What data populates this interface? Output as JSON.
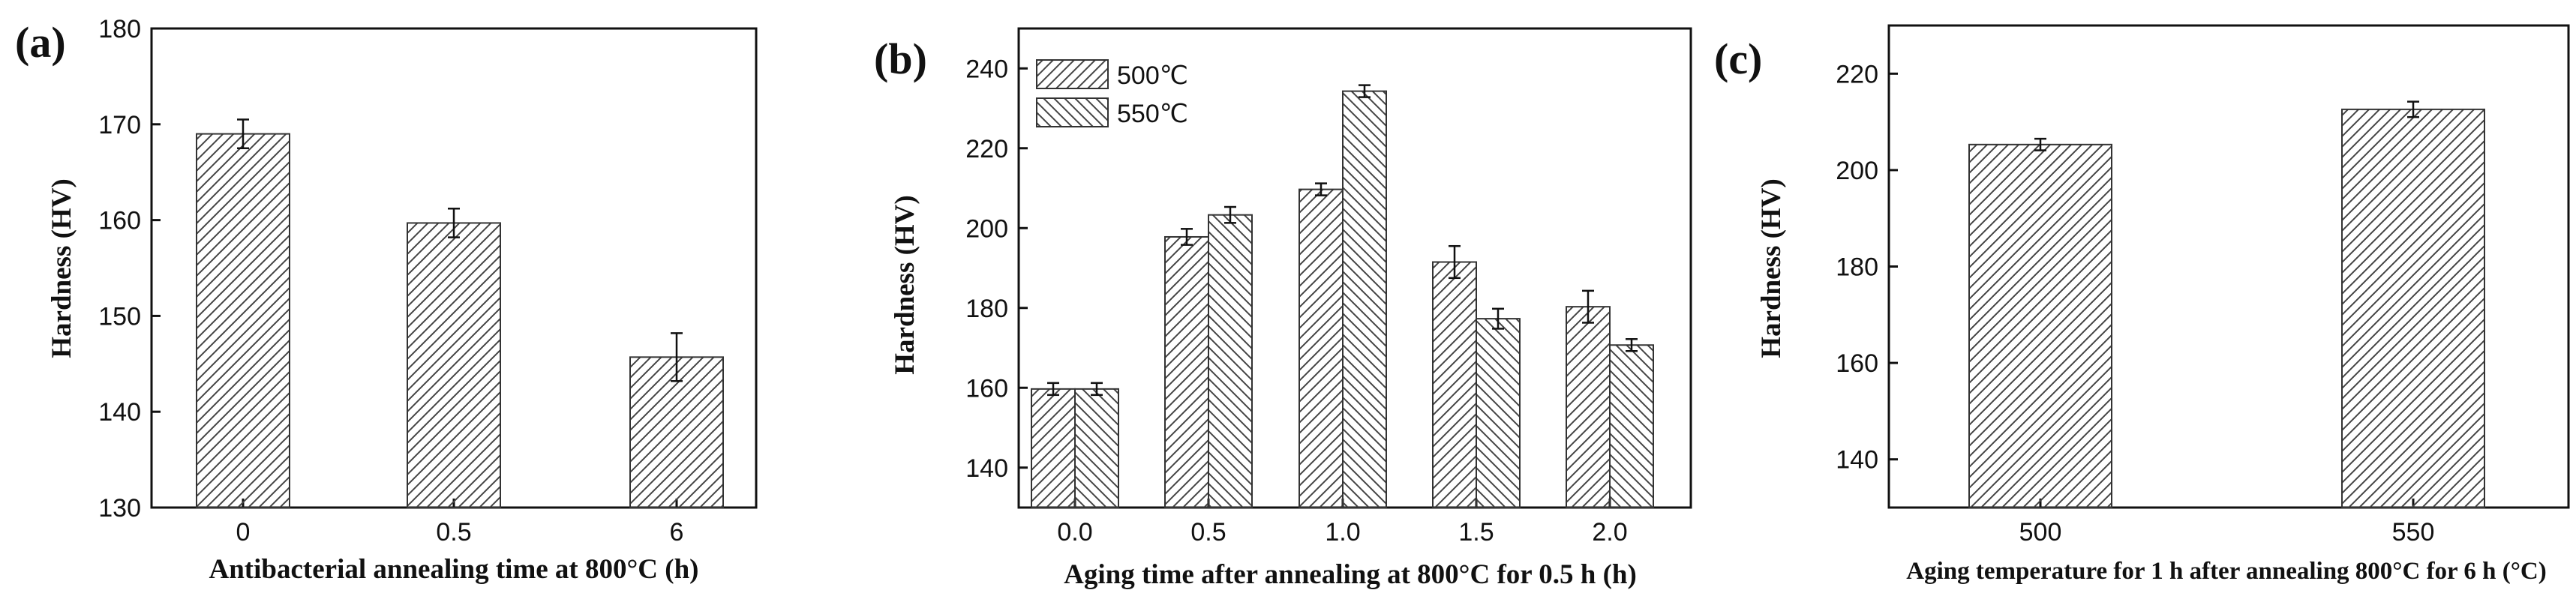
{
  "chart_data": [
    {
      "type": "bar",
      "panel_label": "(a)",
      "categories": [
        "0",
        "0.5",
        "6"
      ],
      "values": [
        169,
        159.7,
        145.7
      ],
      "errors": [
        1.5,
        1.5,
        2.5
      ],
      "ylim": [
        130,
        180
      ],
      "yticks": [
        "130",
        "140",
        "150",
        "160",
        "170",
        "180"
      ],
      "xlabel": "Antibacterial annealing time at 800°C (h)",
      "ylabel": "Hardness (HV)"
    },
    {
      "type": "bar",
      "panel_label": "(b)",
      "categories": [
        "0.0",
        "0.5",
        "1.0",
        "1.5",
        "2.0"
      ],
      "series": [
        {
          "name": "500℃",
          "values": [
            159.7,
            197.8,
            209.7,
            191.5,
            180.3
          ],
          "errors": [
            1.5,
            2,
            1.5,
            4,
            4
          ]
        },
        {
          "name": "550℃",
          "values": [
            159.7,
            203.3,
            234.3,
            177.3,
            170.7
          ],
          "errors": [
            1.5,
            2,
            1.5,
            2.5,
            1.5
          ]
        }
      ],
      "ylim": [
        130,
        250
      ],
      "yticks": [
        "140",
        "160",
        "180",
        "200",
        "220",
        "240"
      ],
      "xlabel": "Aging time after annealing at 800°C for 0.5 h (h)",
      "ylabel": "Hardness (HV)",
      "legend_position": "top-left"
    },
    {
      "type": "bar",
      "panel_label": "(c)",
      "categories": [
        "500",
        "550"
      ],
      "values": [
        205.3,
        212.6
      ],
      "errors": [
        1.2,
        1.6
      ],
      "ylim": [
        130,
        230
      ],
      "yticks": [
        "140",
        "160",
        "180",
        "200",
        "220"
      ],
      "xlabel": "Aging temperature for 1 h after annealing 800°C for 6 h (°C)",
      "ylabel": "Hardness (HV)"
    }
  ]
}
